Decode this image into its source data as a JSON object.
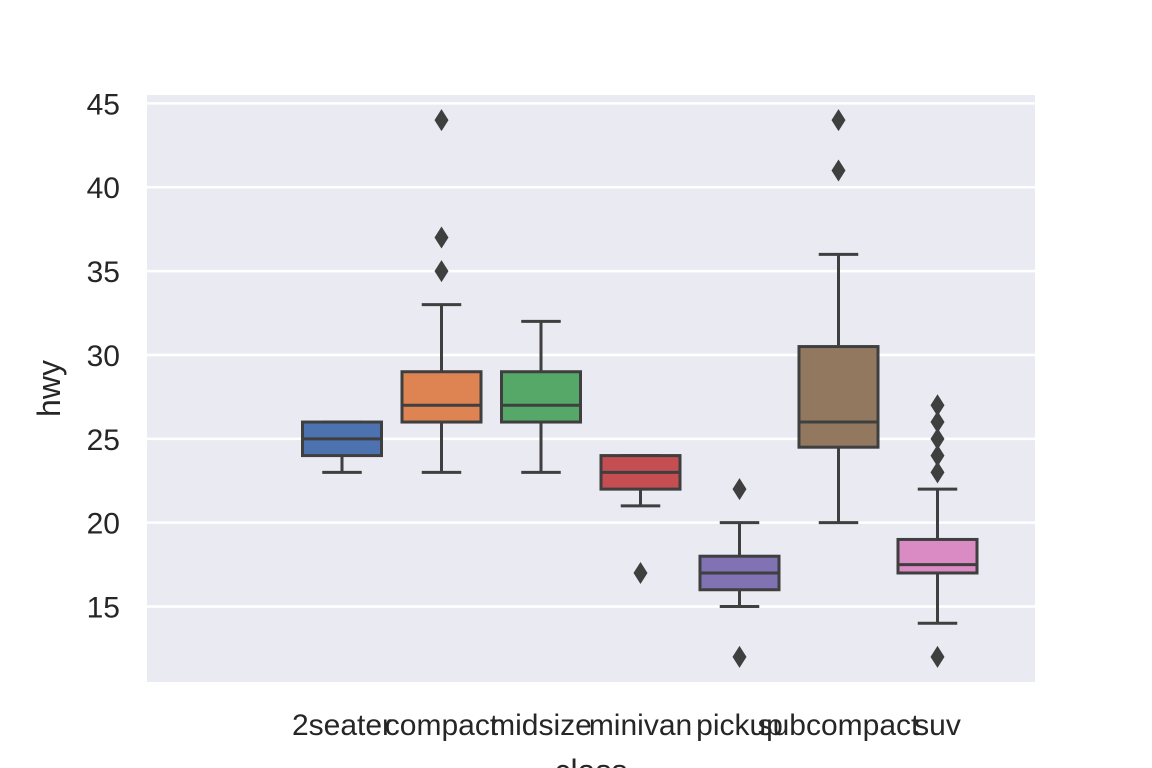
{
  "chart_data": {
    "type": "box",
    "xlabel": "class",
    "ylabel": "hwy",
    "ylim": [
      10.5,
      45.5
    ],
    "yticks": [
      15,
      20,
      25,
      30,
      35,
      40,
      45
    ],
    "grid": true,
    "style": "seaborn-darkgrid",
    "categories": [
      "2seater",
      "compact",
      "midsize",
      "minivan",
      "pickup",
      "subcompact",
      "suv"
    ],
    "boxes": [
      {
        "category": "2seater",
        "q1": 24,
        "median": 25,
        "q3": 26,
        "whisker_low": 23,
        "whisker_high": 26,
        "outliers": [],
        "color": "#4c72b0"
      },
      {
        "category": "compact",
        "q1": 26,
        "median": 27,
        "q3": 29,
        "whisker_low": 23,
        "whisker_high": 33,
        "outliers": [
          35,
          37,
          44
        ],
        "color": "#dd8452"
      },
      {
        "category": "midsize",
        "q1": 26,
        "median": 27,
        "q3": 29,
        "whisker_low": 23,
        "whisker_high": 32,
        "outliers": [],
        "color": "#55a868"
      },
      {
        "category": "minivan",
        "q1": 22,
        "median": 23,
        "q3": 24,
        "whisker_low": 21,
        "whisker_high": 24,
        "outliers": [
          17
        ],
        "color": "#c44e52"
      },
      {
        "category": "pickup",
        "q1": 16,
        "median": 17,
        "q3": 18,
        "whisker_low": 15,
        "whisker_high": 20,
        "outliers": [
          12,
          22
        ],
        "color": "#8172b3"
      },
      {
        "category": "subcompact",
        "q1": 24.5,
        "median": 26,
        "q3": 30.5,
        "whisker_low": 20,
        "whisker_high": 36,
        "outliers": [
          41,
          44
        ],
        "color": "#937860"
      },
      {
        "category": "suv",
        "q1": 17,
        "median": 17.5,
        "q3": 19,
        "whisker_low": 14,
        "whisker_high": 22,
        "outliers": [
          12,
          23,
          24,
          25,
          26,
          27
        ],
        "color": "#da8bc3"
      }
    ]
  }
}
